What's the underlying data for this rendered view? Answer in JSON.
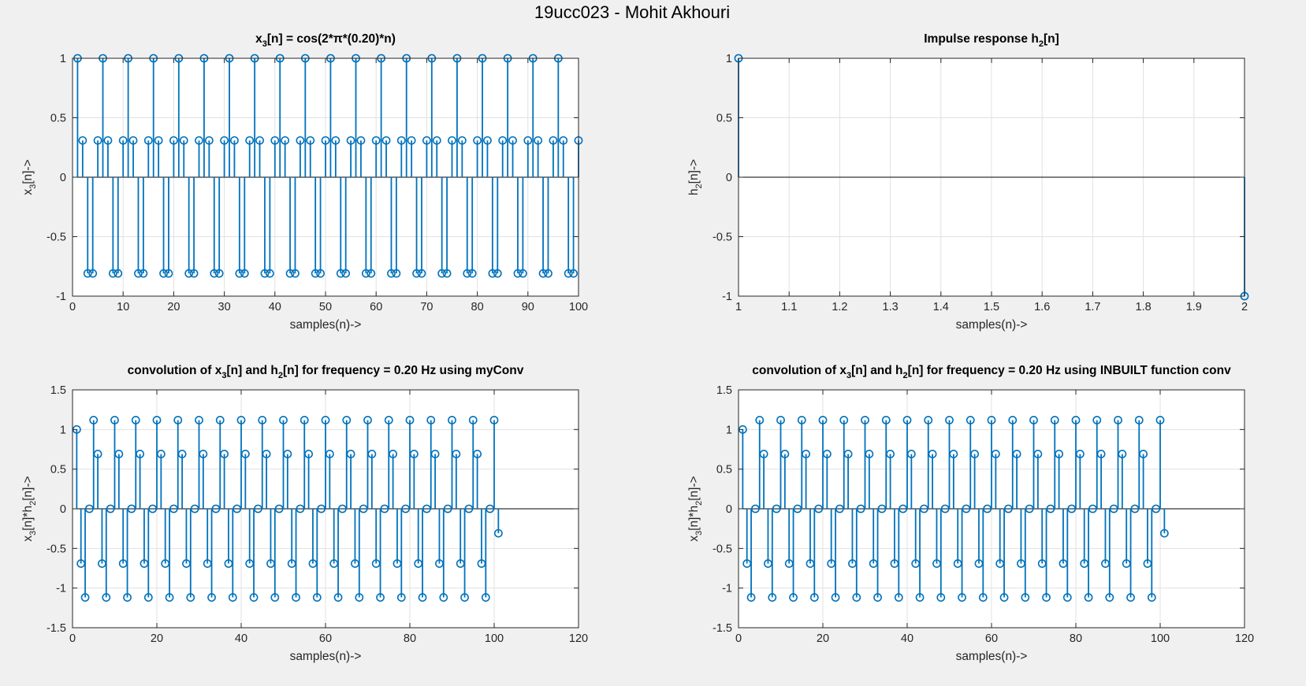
{
  "figure_title": "19ucc023 - Mohit Akhouri",
  "colors": {
    "stem": "#0072bd",
    "grid": "#e1e1e1",
    "axes": "#262626",
    "background": "#f0f0f0"
  },
  "chart_data": [
    {
      "type": "stem",
      "title_parts": [
        "x",
        "3",
        "[n] = cos(2*π*(0.20)*n)"
      ],
      "xlabel": "samples(n)->",
      "ylabel_parts": [
        "x",
        "3",
        "[n]->"
      ],
      "xlim": [
        0,
        100
      ],
      "ylim": [
        -1,
        1
      ],
      "xticks": [
        0,
        10,
        20,
        30,
        40,
        50,
        60,
        70,
        80,
        90,
        100
      ],
      "xtick_labels": [
        "0",
        "10",
        "20",
        "30",
        "40",
        "50",
        "60",
        "70",
        "80",
        "90",
        "100"
      ],
      "yticks": [
        -1,
        -0.5,
        0,
        0.5,
        1
      ],
      "ytick_labels": [
        "-1",
        "-0.5",
        "0",
        "0.5",
        "1"
      ],
      "grid": true,
      "x_start": 1,
      "values_pattern": [
        1,
        0.309,
        -0.809,
        -0.809,
        0.309
      ],
      "count": 100
    },
    {
      "type": "stem",
      "title_parts": [
        "Impulse response h",
        "2",
        "[n]"
      ],
      "xlabel": "samples(n)->",
      "ylabel_parts": [
        "h",
        "2",
        "[n]->"
      ],
      "xlim": [
        1,
        2
      ],
      "ylim": [
        -1,
        1
      ],
      "xticks": [
        1,
        1.1,
        1.2,
        1.3,
        1.4,
        1.5,
        1.6,
        1.7,
        1.8,
        1.9,
        2
      ],
      "xtick_labels": [
        "1",
        "1.1",
        "1.2",
        "1.3",
        "1.4",
        "1.5",
        "1.6",
        "1.7",
        "1.8",
        "1.9",
        "2"
      ],
      "yticks": [
        -1,
        -0.5,
        0,
        0.5,
        1
      ],
      "ytick_labels": [
        "-1",
        "-0.5",
        "0",
        "0.5",
        "1"
      ],
      "grid": true,
      "x": [
        1,
        2
      ],
      "values": [
        1,
        -1
      ]
    },
    {
      "type": "stem",
      "title_parts": [
        "convolution of x",
        "3",
        "[n] and h",
        "2",
        "[n] for frequency = 0.20 Hz using myConv"
      ],
      "xlabel": "samples(n)->",
      "ylabel_parts": [
        "x",
        "3",
        "[n]*h",
        "2",
        "[n]->"
      ],
      "xlim": [
        0,
        120
      ],
      "ylim": [
        -1.5,
        1.5
      ],
      "xticks": [
        0,
        20,
        40,
        60,
        80,
        100,
        120
      ],
      "xtick_labels": [
        "0",
        "20",
        "40",
        "60",
        "80",
        "100",
        "120"
      ],
      "yticks": [
        -1.5,
        -1,
        -0.5,
        0,
        0.5,
        1,
        1.5
      ],
      "ytick_labels": [
        "-1.5",
        "-1",
        "-0.5",
        "0",
        "0.5",
        "1",
        "1.5"
      ],
      "grid": true,
      "x_start": 1,
      "first_value": 1,
      "values_pattern": [
        -0.691,
        -1.118,
        0,
        1.118,
        0.691
      ],
      "pattern_count": 99,
      "last_value": -0.309
    },
    {
      "type": "stem",
      "title_parts": [
        "convolution of x",
        "3",
        "[n] and h",
        "2",
        "[n] for frequency = 0.20 Hz using INBUILT function conv"
      ],
      "xlabel": "samples(n)->",
      "ylabel_parts": [
        "x",
        "3",
        "[n]*h",
        "2",
        "[n]->"
      ],
      "xlim": [
        0,
        120
      ],
      "ylim": [
        -1.5,
        1.5
      ],
      "xticks": [
        0,
        20,
        40,
        60,
        80,
        100,
        120
      ],
      "xtick_labels": [
        "0",
        "20",
        "40",
        "60",
        "80",
        "100",
        "120"
      ],
      "yticks": [
        -1.5,
        -1,
        -0.5,
        0,
        0.5,
        1,
        1.5
      ],
      "ytick_labels": [
        "-1.5",
        "-1",
        "-0.5",
        "0",
        "0.5",
        "1",
        "1.5"
      ],
      "grid": true,
      "x_start": 1,
      "first_value": 1,
      "values_pattern": [
        -0.691,
        -1.118,
        0,
        1.118,
        0.691
      ],
      "pattern_count": 99,
      "last_value": -0.309
    }
  ]
}
